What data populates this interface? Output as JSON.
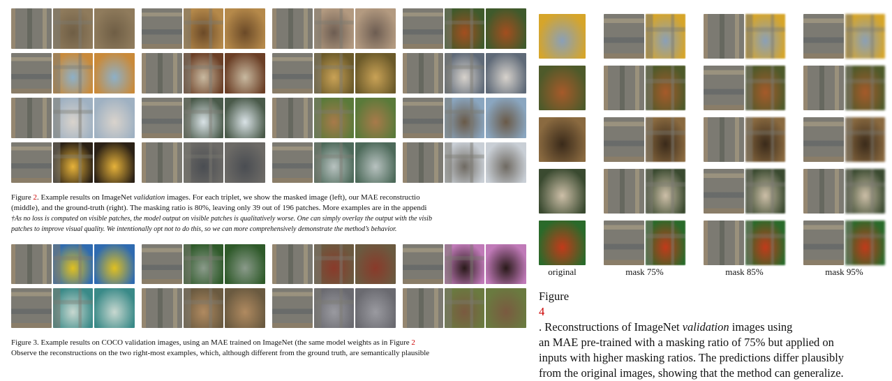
{
  "figure2": {
    "caption_lines": [
      [
        "Figure ",
        "2",
        ". Example results on ImageNet ",
        "validation",
        " images. For each triplet, we show the masked image (left), our MAE reconstructio"
      ],
      "(middle), and the ground-truth (right). The masking ratio is 80%, leaving only 39 out of 196 patches. More examples are in the appendi"
    ],
    "note_lines": [
      "†As no loss is computed on visible patches, the model output on visible patches is qualitatively worse. One can simply overlay the output with the visib",
      "patches to improve visual quality. We intentionally opt not to do this, so we can more comprehensively demonstrate the method’s behavior."
    ],
    "rows": [
      [
        [
          "#8f7b5c",
          "#6f5e45"
        ],
        [
          "#b5894a",
          "#6b4a28"
        ],
        [
          "#b39a80",
          "#6d5d52"
        ],
        [
          "#3f5a2c",
          "#a34e1f"
        ]
      ],
      [
        [
          "#c98a3a",
          "#8db0c8"
        ],
        [
          "#6b3f26",
          "#c8b9a0"
        ],
        [
          "#6b5a2a",
          "#c9a256"
        ],
        [
          "#5f6a78",
          "#d7d2cc"
        ]
      ],
      [
        [
          "#9fb1c2",
          "#d9d3cc"
        ],
        [
          "#4a5a4a",
          "#d9e2e6"
        ],
        [
          "#5a7a3a",
          "#a87a4a"
        ],
        [
          "#8aa6c0",
          "#6a5a48"
        ]
      ],
      [
        [
          "#2b2116",
          "#e6b23a"
        ],
        [
          "#6c6a66",
          "#4a4d52"
        ],
        [
          "#4d6a5a",
          "#b8c2c0"
        ],
        [
          "#c9cfd6",
          "#6f6a62"
        ]
      ]
    ]
  },
  "figure3": {
    "caption_lines": [
      [
        "Figure 3. Example results on COCO validation images, using an MAE trained on ImageNet (the same model weights as in Figure ",
        "2",
        ""
      ],
      "Observe the reconstructions on the two right-most examples, which, although different from the ground truth, are semantically plausible"
    ],
    "rows": [
      [
        [
          "#2f6bb0",
          "#e0c020"
        ],
        [
          "#2f5a2a",
          "#8a9a8a"
        ],
        [
          "#6b5a40",
          "#8a3a2a"
        ],
        [
          "#c07ab8",
          "#2a1a1a"
        ]
      ],
      [
        [
          "#3a8a88",
          "#c8d8d0"
        ],
        [
          "#6a5a40",
          "#b08a60"
        ],
        [
          "#6a6a70",
          "#9a9aa0"
        ],
        [
          "#6a7a40",
          "#7a5a40"
        ]
      ]
    ]
  },
  "figure4": {
    "column_labels": [
      "original",
      "mask 75%",
      "mask 85%",
      "mask 95%"
    ],
    "caption_lines": [
      [
        "Figure ",
        "4",
        ".  Reconstructions of ImageNet ",
        "validation",
        " images using"
      ],
      "an MAE pre-trained with a masking ratio of 75% but applied on",
      "inputs with higher masking ratios. The predictions differ plausibly",
      "from the original images, showing that the method can generalize."
    ],
    "rows": [
      [
        "#d6a52a",
        "#8aa0b8"
      ],
      [
        "#4e5a2a",
        "#a65a2a"
      ],
      [
        "#8a6a40",
        "#3a2a1a"
      ],
      [
        "#3a4a30",
        "#cdbfa8"
      ],
      [
        "#2a6a2a",
        "#c23a1a"
      ]
    ]
  }
}
